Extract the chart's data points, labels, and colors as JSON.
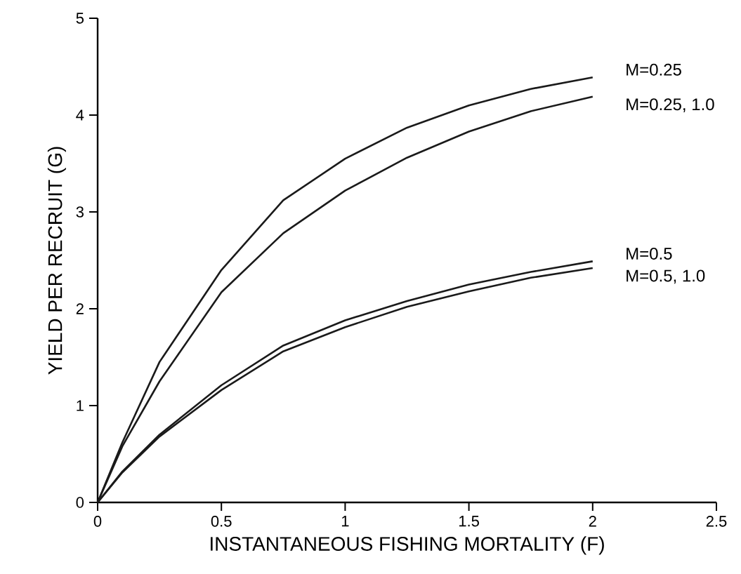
{
  "chart_data": {
    "type": "line",
    "xlabel": "INSTANTANEOUS FISHING MORTALITY (F)",
    "ylabel": "YIELD PER RECRUIT (G)",
    "x": [
      0,
      0.1,
      0.25,
      0.5,
      0.75,
      1,
      1.25,
      1.5,
      1.75,
      2
    ],
    "series": [
      {
        "name": "M=0.25",
        "color": "#1a1a1a",
        "values": [
          0,
          0.62,
          1.45,
          2.4,
          3.12,
          3.55,
          3.87,
          4.1,
          4.27,
          4.39
        ]
      },
      {
        "name": "M=0.25, 1.0",
        "color": "#1a1a1a",
        "values": [
          0,
          0.58,
          1.25,
          2.17,
          2.78,
          3.22,
          3.56,
          3.83,
          4.04,
          4.19
        ]
      },
      {
        "name": "M=0.5",
        "color": "#1a1a1a",
        "values": [
          0,
          0.32,
          0.7,
          1.21,
          1.62,
          1.88,
          2.08,
          2.25,
          2.38,
          2.49
        ]
      },
      {
        "name": "M=0.5, 1.0",
        "color": "#1a1a1a",
        "values": [
          0,
          0.31,
          0.68,
          1.16,
          1.56,
          1.81,
          2.02,
          2.18,
          2.32,
          2.42
        ]
      }
    ],
    "xlim": [
      0,
      2.5
    ],
    "ylim": [
      0,
      5
    ],
    "xticks": [
      0,
      0.5,
      1,
      1.5,
      2,
      2.5
    ],
    "yticks": [
      0,
      1,
      2,
      3,
      4,
      5
    ],
    "grid": false,
    "legend": false,
    "marker": "none",
    "line_style": "solid"
  }
}
